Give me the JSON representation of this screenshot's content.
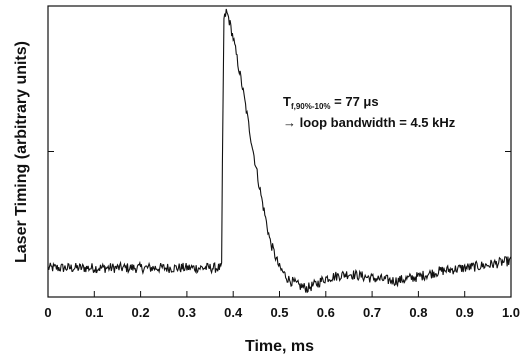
{
  "chart_data": {
    "type": "line",
    "xlabel": "Time, ms",
    "ylabel": "Laser Timing (arbitrary units)",
    "xlim": [
      0,
      1.0
    ],
    "ylim": [
      0,
      1
    ],
    "x_ticks": [
      "0",
      "0.1",
      "0.2",
      "0.3",
      "0.4",
      "0.5",
      "0.6",
      "0.7",
      "0.8",
      "0.9",
      "1.0"
    ],
    "y_ticks_labeled": false,
    "grid": false,
    "legend": "none",
    "line_color": "#111111",
    "annotations": {
      "line1_main": "T",
      "line1_sub": "f,90%-10%",
      "line1_rest": " = 77 μs",
      "line2": "→ loop bandwidth = 4.5 kHz"
    },
    "series": [
      {
        "x": [
          0.0,
          0.05,
          0.1,
          0.15,
          0.2,
          0.25,
          0.3,
          0.35,
          0.37,
          0.375,
          0.377,
          0.38,
          0.385,
          0.39,
          0.4,
          0.42,
          0.44,
          0.46,
          0.48,
          0.5,
          0.52,
          0.54,
          0.56,
          0.58,
          0.6,
          0.65,
          0.7,
          0.75,
          0.8,
          0.85,
          0.9,
          0.95,
          1.0
        ],
        "y": [
          0.1,
          0.1,
          0.1,
          0.1,
          0.1,
          0.1,
          0.1,
          0.1,
          0.1,
          0.1,
          0.52,
          0.95,
          0.98,
          0.96,
          0.89,
          0.72,
          0.53,
          0.35,
          0.19,
          0.1,
          0.06,
          0.04,
          0.03,
          0.045,
          0.065,
          0.08,
          0.065,
          0.055,
          0.07,
          0.09,
          0.1,
          0.11,
          0.125
        ]
      }
    ]
  }
}
